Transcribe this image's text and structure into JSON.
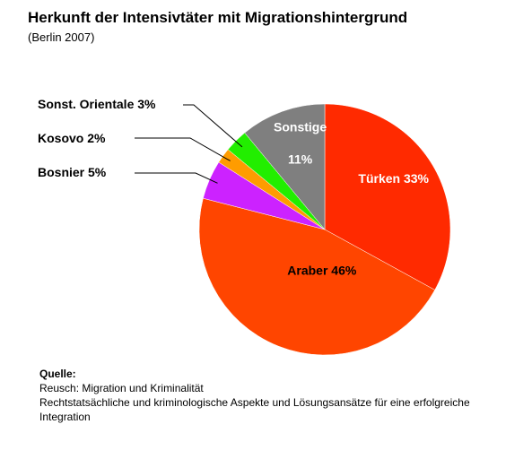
{
  "title": "Herkunft der Intensivtäter mit Migrationshintergrund",
  "subtitle": "(Berlin 2007)",
  "chart_data": {
    "type": "pie",
    "title": "Herkunft der Intensivtäter mit Migrationshintergrund",
    "subtitle": "(Berlin 2007)",
    "slices": [
      {
        "name": "Türken",
        "value": 33,
        "label": "Türken 33%",
        "color": "#ff2a00"
      },
      {
        "name": "Araber",
        "value": 46,
        "label": "Araber 46%",
        "color": "#ff4500"
      },
      {
        "name": "Bosnier",
        "value": 5,
        "label": "Bosnier 5%",
        "color": "#cc22ff"
      },
      {
        "name": "Kosovo",
        "value": 2,
        "label": "Kosovo 2%",
        "color": "#ff9c00"
      },
      {
        "name": "Sonst. Orientale",
        "value": 3,
        "label": "Sonst. Orientale 3%",
        "color": "#22ee00"
      },
      {
        "name": "Sonstige",
        "value": 11,
        "label": "Sonstige",
        "sublabel": "11%",
        "color": "#7f7f7f"
      }
    ]
  },
  "source": {
    "heading": "Quelle:",
    "line1": "Reusch: Migration und Kriminalität",
    "line2": "Rechtstatsächliche und kriminologische Aspekte und Lösungsansätze für eine erfolgreiche Integration"
  }
}
